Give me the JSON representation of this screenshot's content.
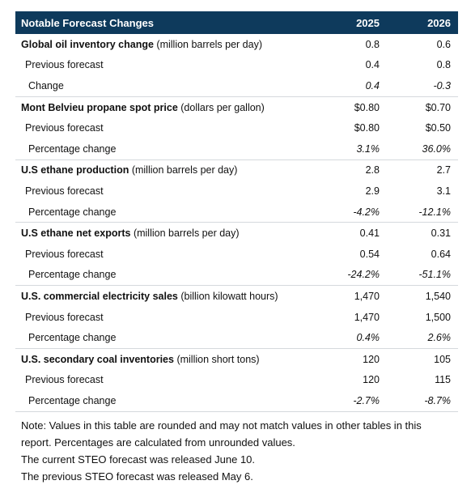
{
  "table": {
    "title": "Notable Forecast Changes",
    "col1": "2025",
    "col2": "2026",
    "groups": [
      {
        "name": "Global oil inventory change",
        "unit": "(million barrels per day)",
        "current": [
          "0.8",
          "0.6"
        ],
        "prev_label": "Previous forecast",
        "previous": [
          "0.4",
          "0.8"
        ],
        "change_label": "Change",
        "change": [
          "0.4",
          "-0.3"
        ]
      },
      {
        "name": "Mont Belvieu propane spot price",
        "unit": "(dollars per gallon)",
        "current": [
          "$0.80",
          "$0.70"
        ],
        "prev_label": "Previous forecast",
        "previous": [
          "$0.80",
          "$0.50"
        ],
        "change_label": "Percentage change",
        "change": [
          "3.1%",
          "36.0%"
        ]
      },
      {
        "name": "U.S ethane production",
        "unit": "(million barrels per day)",
        "current": [
          "2.8",
          "2.7"
        ],
        "prev_label": "Previous forecast",
        "previous": [
          "2.9",
          "3.1"
        ],
        "change_label": "Percentage change",
        "change": [
          "-4.2%",
          "-12.1%"
        ]
      },
      {
        "name": "U.S ethane net exports",
        "unit": "(million barrels per day)",
        "current": [
          "0.41",
          "0.31"
        ],
        "prev_label": "Previous forecast",
        "previous": [
          "0.54",
          "0.64"
        ],
        "change_label": "Percentage change",
        "change": [
          "-24.2%",
          "-51.1%"
        ]
      },
      {
        "name": "U.S. commercial electricity sales",
        "unit": "(billion kilowatt hours)",
        "current": [
          "1,470",
          "1,540"
        ],
        "prev_label": "Previous forecast",
        "previous": [
          "1,470",
          "1,500"
        ],
        "change_label": "Percentage change",
        "change": [
          "0.4%",
          "2.6%"
        ]
      },
      {
        "name": "U.S. secondary coal inventories",
        "unit": "(million short tons)",
        "current": [
          "120",
          "105"
        ],
        "prev_label": "Previous forecast",
        "previous": [
          "120",
          "115"
        ],
        "change_label": "Percentage change",
        "change": [
          "-2.7%",
          "-8.7%"
        ]
      }
    ]
  },
  "note": {
    "line1": "Note: Values in this table are rounded and may not match values in other tables in this report. Percentages are calculated from unrounded values.",
    "line2": "The current STEO forecast was released June 10.",
    "line3": "The previous STEO forecast was released May 6."
  }
}
